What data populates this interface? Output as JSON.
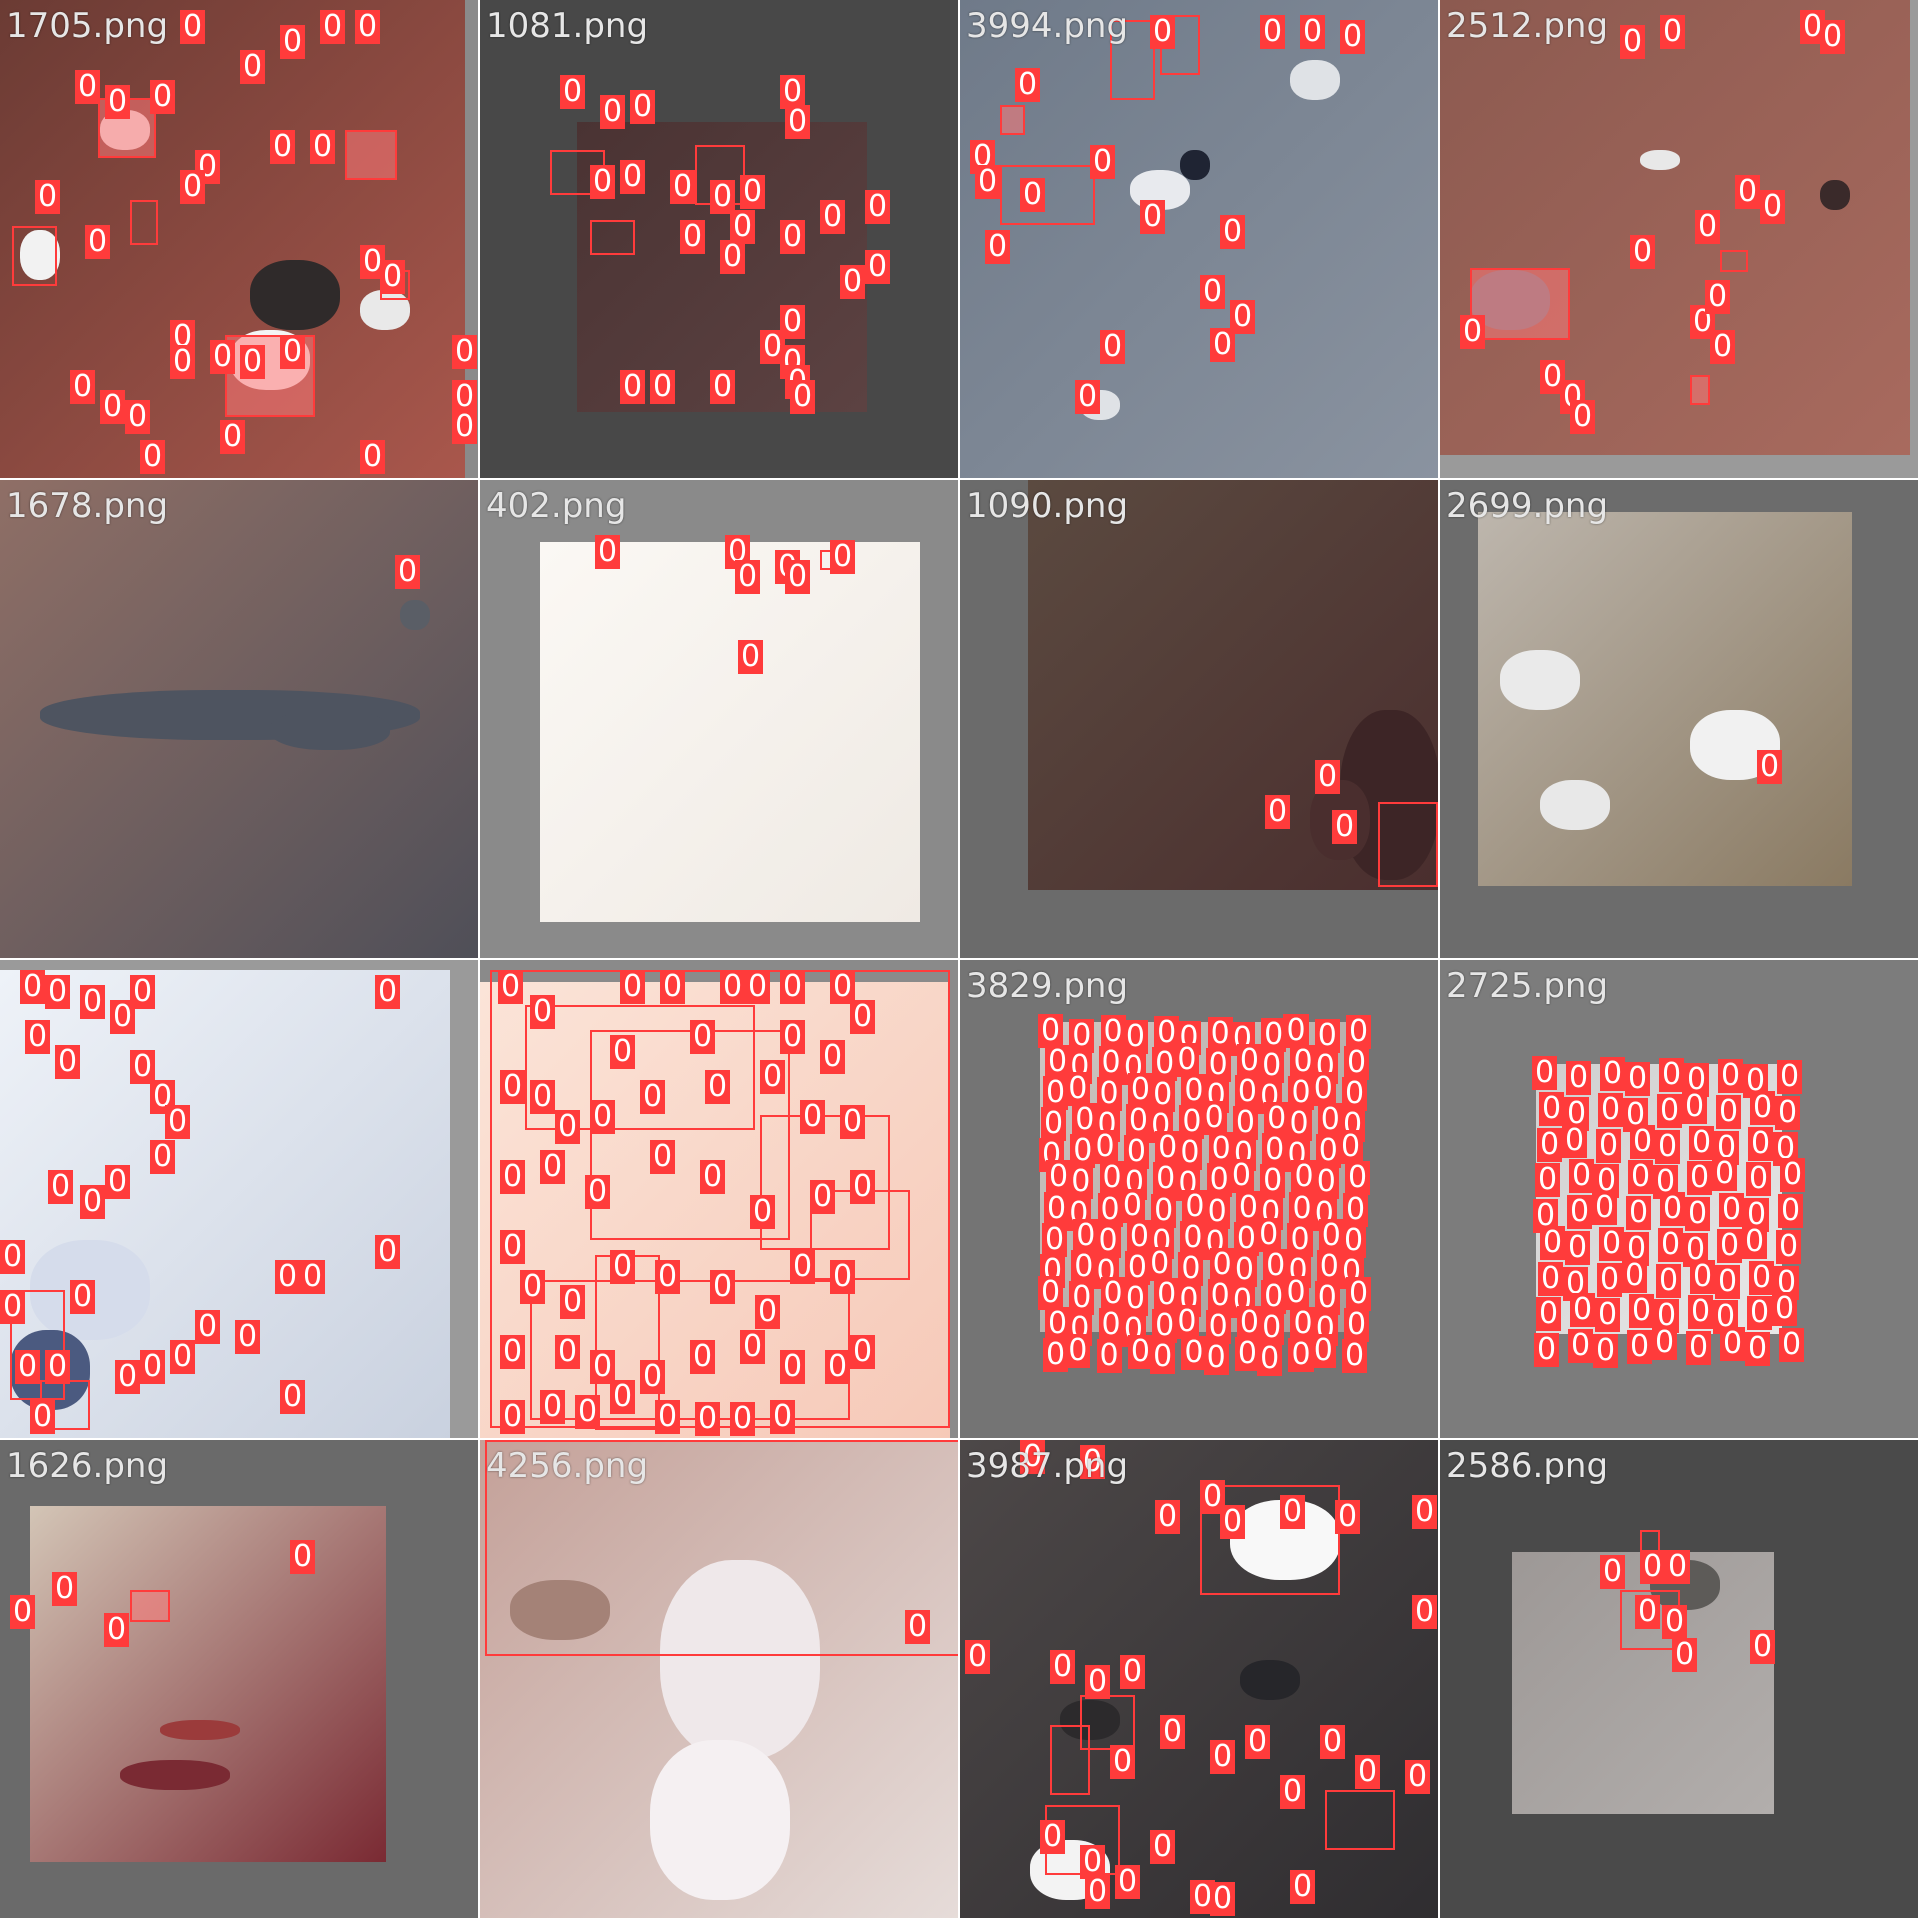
{
  "mosaic": {
    "tiles": [
      {
        "filename": "1705.png",
        "class_label": "0",
        "scene": "dark-red terrain with scattered cumulus clouds",
        "colors": {
          "bg": "#8a8a8a",
          "scene": "#6b3b34",
          "accent": "#a9574c"
        }
      },
      {
        "filename": "1081.png",
        "class_label": "0",
        "scene": "dark agricultural land on grey padding",
        "colors": {
          "bg": "#484848",
          "scene": "#4a3333",
          "accent": "#5c4242"
        }
      },
      {
        "filename": "3994.png",
        "class_label": "0",
        "scene": "grey-blue water surface with small clouds",
        "colors": {
          "bg": "#6e7686",
          "scene": "#6f7a89",
          "accent": "#8a93a0"
        }
      },
      {
        "filename": "2512.png",
        "class_label": "0",
        "scene": "reddish farmland with town and lake",
        "colors": {
          "bg": "#9a9a9a",
          "scene": "#8c5a50",
          "accent": "#a86a5e"
        }
      },
      {
        "filename": "1678.png",
        "class_label": "0",
        "scene": "reddish-brown land with long dark lake",
        "colors": {
          "bg": "#8a6e64",
          "scene": "#8f6f66",
          "accent": "#4f4f58"
        }
      },
      {
        "filename": "402.png",
        "class_label": "0",
        "scene": "bright white overexposed area on grey padding",
        "colors": {
          "bg": "#8a8a8a",
          "scene": "#fbf8f4",
          "accent": "#efeae4"
        }
      },
      {
        "filename": "1090.png",
        "class_label": "0",
        "scene": "brown desert slope with dark coastline",
        "colors": {
          "bg": "#6b6b6b",
          "scene": "#5b4a40",
          "accent": "#4a2e2e"
        }
      },
      {
        "filename": "2699.png",
        "class_label": "0",
        "scene": "hazy cloud field over brown land",
        "colors": {
          "bg": "#6c6c6c",
          "scene": "#bdb6ad",
          "accent": "#8a7a62"
        }
      },
      {
        "filename": "",
        "class_label": "0",
        "scene": "snow and cloud covered white field",
        "colors": {
          "bg": "#9a9a9a",
          "scene": "#eef2f8",
          "accent": "#c9d1df"
        }
      },
      {
        "filename": "",
        "class_label": "0",
        "scene": "pale peach area with many boxes",
        "colors": {
          "bg": "#8a8a8a",
          "scene": "#fbe4d8",
          "accent": "#f6c9b8"
        }
      },
      {
        "filename": "3829.png",
        "class_label": "0",
        "scene": "dense detections on grey padding",
        "colors": {
          "bg": "#747474",
          "scene": "#cfc8c4",
          "accent": "#a49c98"
        }
      },
      {
        "filename": "2725.png",
        "class_label": "0",
        "scene": "dense detections on grey padding",
        "colors": {
          "bg": "#7c7c7c",
          "scene": "#cfcfcf",
          "accent": "#e8e8e8"
        }
      },
      {
        "filename": "1626.png",
        "class_label": "0",
        "scene": "beige desert with dark ridge",
        "colors": {
          "bg": "#6a6a6a",
          "scene": "#d3c5b6",
          "accent": "#7a2a33"
        }
      },
      {
        "filename": "4256.png",
        "class_label": "0",
        "scene": "pink-brown hazy terrain",
        "colors": {
          "bg": "#888888",
          "scene": "#c4a199",
          "accent": "#e6dcd9"
        }
      },
      {
        "filename": "3987.png",
        "class_label": "0",
        "scene": "dark grey land with lakes and clouds",
        "colors": {
          "bg": "#555555",
          "scene": "#4d4848",
          "accent": "#2f2d30"
        }
      },
      {
        "filename": "2586.png",
        "class_label": "0",
        "scene": "grey terrain on dark grey padding",
        "colors": {
          "bg": "#4a4a4a",
          "scene": "#9d9896",
          "accent": "#b2aeac"
        }
      }
    ]
  }
}
